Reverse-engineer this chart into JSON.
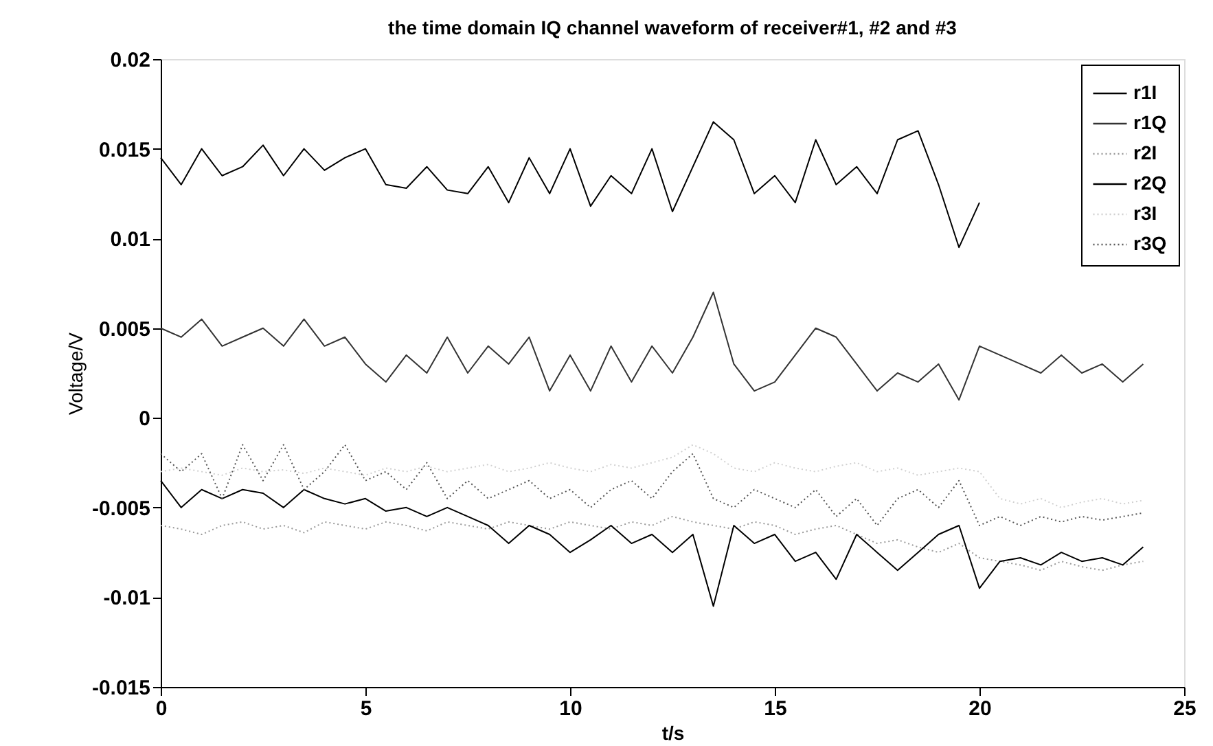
{
  "chart_data": {
    "type": "line",
    "title": "the time domain IQ channel waveform of receiver#1, #2 and #3",
    "xlabel": "t/s",
    "ylabel": "Voltage/V",
    "x": [
      0,
      0.5,
      1,
      1.5,
      2,
      2.5,
      3,
      3.5,
      4,
      4.5,
      5,
      5.5,
      6,
      6.5,
      7,
      7.5,
      8,
      8.5,
      9,
      9.5,
      10,
      10.5,
      11,
      11.5,
      12,
      12.5,
      13,
      13.5,
      14,
      14.5,
      15,
      15.5,
      16,
      16.5,
      17,
      17.5,
      18,
      18.5,
      19,
      19.5,
      20,
      20.5,
      21,
      21.5,
      22,
      22.5,
      23,
      23.5,
      24
    ],
    "series": [
      {
        "name": "r1I",
        "color": "#000000",
        "line_style": "solid",
        "values": [
          0.0145,
          0.013,
          0.015,
          0.0135,
          0.014,
          0.0152,
          0.0135,
          0.015,
          0.0138,
          0.0145,
          0.015,
          0.013,
          0.0128,
          0.014,
          0.0127,
          0.0125,
          0.014,
          0.012,
          0.0145,
          0.0125,
          0.015,
          0.0118,
          0.0135,
          0.0125,
          0.015,
          0.0115,
          0.014,
          0.0165,
          0.0155,
          0.0125,
          0.0135,
          0.012,
          0.0155,
          0.013,
          0.014,
          0.0125,
          0.0155,
          0.016,
          0.013,
          0.0095,
          0.012,
          null,
          null,
          null,
          null,
          null,
          null,
          null,
          null
        ]
      },
      {
        "name": "r1Q",
        "color": "#333333",
        "line_style": "solid",
        "values": [
          0.005,
          0.0045,
          0.0055,
          0.004,
          0.0045,
          0.005,
          0.004,
          0.0055,
          0.004,
          0.0045,
          0.003,
          0.002,
          0.0035,
          0.0025,
          0.0045,
          0.0025,
          0.004,
          0.003,
          0.0045,
          0.0015,
          0.0035,
          0.0015,
          0.004,
          0.002,
          0.004,
          0.0025,
          0.0045,
          0.007,
          0.003,
          0.0015,
          0.002,
          0.0035,
          0.005,
          0.0045,
          0.003,
          0.0015,
          0.0025,
          0.002,
          0.003,
          0.001,
          0.004,
          0.0035,
          0.003,
          0.0025,
          0.0035,
          0.0025,
          0.003,
          0.002,
          0.003
        ]
      },
      {
        "name": "r2I",
        "color": "#999999",
        "line_style": "dotted",
        "values": [
          -0.006,
          -0.0062,
          -0.0065,
          -0.006,
          -0.0058,
          -0.0062,
          -0.006,
          -0.0064,
          -0.0058,
          -0.006,
          -0.0062,
          -0.0058,
          -0.006,
          -0.0063,
          -0.0058,
          -0.006,
          -0.0062,
          -0.0058,
          -0.006,
          -0.0062,
          -0.0058,
          -0.006,
          -0.0062,
          -0.0058,
          -0.006,
          -0.0055,
          -0.0058,
          -0.006,
          -0.0062,
          -0.0058,
          -0.006,
          -0.0065,
          -0.0062,
          -0.006,
          -0.0065,
          -0.007,
          -0.0068,
          -0.0072,
          -0.0075,
          -0.007,
          -0.0078,
          -0.008,
          -0.0082,
          -0.0085,
          -0.008,
          -0.0083,
          -0.0085,
          -0.0082,
          -0.008
        ]
      },
      {
        "name": "r2Q",
        "color": "#000000",
        "line_style": "solid",
        "values": [
          -0.0035,
          -0.005,
          -0.004,
          -0.0045,
          -0.004,
          -0.0042,
          -0.005,
          -0.004,
          -0.0045,
          -0.0048,
          -0.0045,
          -0.0052,
          -0.005,
          -0.0055,
          -0.005,
          -0.0055,
          -0.006,
          -0.007,
          -0.006,
          -0.0065,
          -0.0075,
          -0.0068,
          -0.006,
          -0.007,
          -0.0065,
          -0.0075,
          -0.0065,
          -0.0105,
          -0.006,
          -0.007,
          -0.0065,
          -0.008,
          -0.0075,
          -0.009,
          -0.0065,
          -0.0075,
          -0.0085,
          -0.0075,
          -0.0065,
          -0.006,
          -0.0095,
          -0.008,
          -0.0078,
          -0.0082,
          -0.0075,
          -0.008,
          -0.0078,
          -0.0082,
          -0.0072
        ]
      },
      {
        "name": "r3I",
        "color": "#d0d0d0",
        "line_style": "dotted",
        "values": [
          -0.003,
          -0.0028,
          -0.003,
          -0.0032,
          -0.0028,
          -0.003,
          -0.0029,
          -0.0031,
          -0.0028,
          -0.003,
          -0.0032,
          -0.0028,
          -0.003,
          -0.0027,
          -0.003,
          -0.0028,
          -0.0026,
          -0.003,
          -0.0028,
          -0.0025,
          -0.0028,
          -0.003,
          -0.0026,
          -0.0028,
          -0.0025,
          -0.0022,
          -0.0015,
          -0.002,
          -0.0028,
          -0.003,
          -0.0025,
          -0.0028,
          -0.003,
          -0.0027,
          -0.0025,
          -0.003,
          -0.0028,
          -0.0032,
          -0.003,
          -0.0028,
          -0.003,
          -0.0045,
          -0.0048,
          -0.0045,
          -0.005,
          -0.0047,
          -0.0045,
          -0.0048,
          -0.0046
        ]
      },
      {
        "name": "r3Q",
        "color": "#555555",
        "line_style": "dotted",
        "values": [
          -0.002,
          -0.003,
          -0.002,
          -0.0045,
          -0.0015,
          -0.0035,
          -0.0015,
          -0.004,
          -0.003,
          -0.0015,
          -0.0035,
          -0.003,
          -0.004,
          -0.0025,
          -0.0045,
          -0.0035,
          -0.0045,
          -0.004,
          -0.0035,
          -0.0045,
          -0.004,
          -0.005,
          -0.004,
          -0.0035,
          -0.0045,
          -0.003,
          -0.002,
          -0.0045,
          -0.005,
          -0.004,
          -0.0045,
          -0.005,
          -0.004,
          -0.0055,
          -0.0045,
          -0.006,
          -0.0045,
          -0.004,
          -0.005,
          -0.0035,
          -0.006,
          -0.0055,
          -0.006,
          -0.0055,
          -0.0058,
          -0.0055,
          -0.0057,
          -0.0055,
          -0.0053
        ]
      }
    ],
    "xlim": [
      0,
      25
    ],
    "xticks": [
      0,
      5,
      10,
      15,
      20,
      25
    ],
    "ylim": [
      -0.015,
      0.02
    ],
    "yticks": [
      -0.015,
      -0.01,
      -0.005,
      0,
      0.005,
      0.01,
      0.015,
      0.02
    ],
    "grid": false,
    "legend": "top right",
    "marker": "none"
  }
}
